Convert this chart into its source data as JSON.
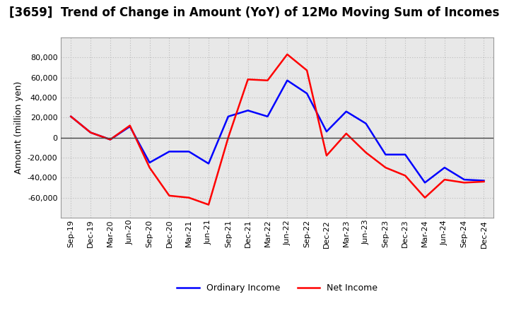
{
  "title": "[3659]  Trend of Change in Amount (YoY) of 12Mo Moving Sum of Incomes",
  "xlabel": "",
  "ylabel": "Amount (million yen)",
  "labels": [
    "Sep-19",
    "Dec-19",
    "Mar-20",
    "Jun-20",
    "Sep-20",
    "Dec-20",
    "Mar-21",
    "Jun-21",
    "Sep-21",
    "Dec-21",
    "Mar-22",
    "Jun-22",
    "Sep-22",
    "Dec-22",
    "Mar-23",
    "Jun-23",
    "Sep-23",
    "Dec-23",
    "Mar-24",
    "Jun-24",
    "Sep-24",
    "Dec-24"
  ],
  "ordinary_income": [
    21000,
    5000,
    -2000,
    11000,
    -25000,
    -14000,
    -14000,
    -26000,
    21000,
    27000,
    21000,
    57000,
    44000,
    6000,
    26000,
    14000,
    -17000,
    -17000,
    -45000,
    -30000,
    -42000,
    -43000
  ],
  "net_income": [
    21000,
    5000,
    -2000,
    12000,
    -30000,
    -58000,
    -60000,
    -67000,
    0,
    58000,
    57000,
    83000,
    67000,
    -18000,
    4000,
    -15000,
    -30000,
    -38000,
    -60000,
    -42000,
    -45000,
    -44000
  ],
  "ordinary_color": "#0000ff",
  "net_color": "#ff0000",
  "ylim": [
    -80000,
    100000
  ],
  "yticks": [
    -60000,
    -40000,
    -20000,
    0,
    20000,
    40000,
    60000,
    80000
  ],
  "legend_ordinary": "Ordinary Income",
  "legend_net": "Net Income",
  "bg_color": "#ffffff",
  "plot_bg_color": "#e8e8e8",
  "grid_color": "#bbbbbb",
  "title_fontsize": 12,
  "axis_fontsize": 9,
  "tick_fontsize": 8,
  "line_width": 1.8
}
